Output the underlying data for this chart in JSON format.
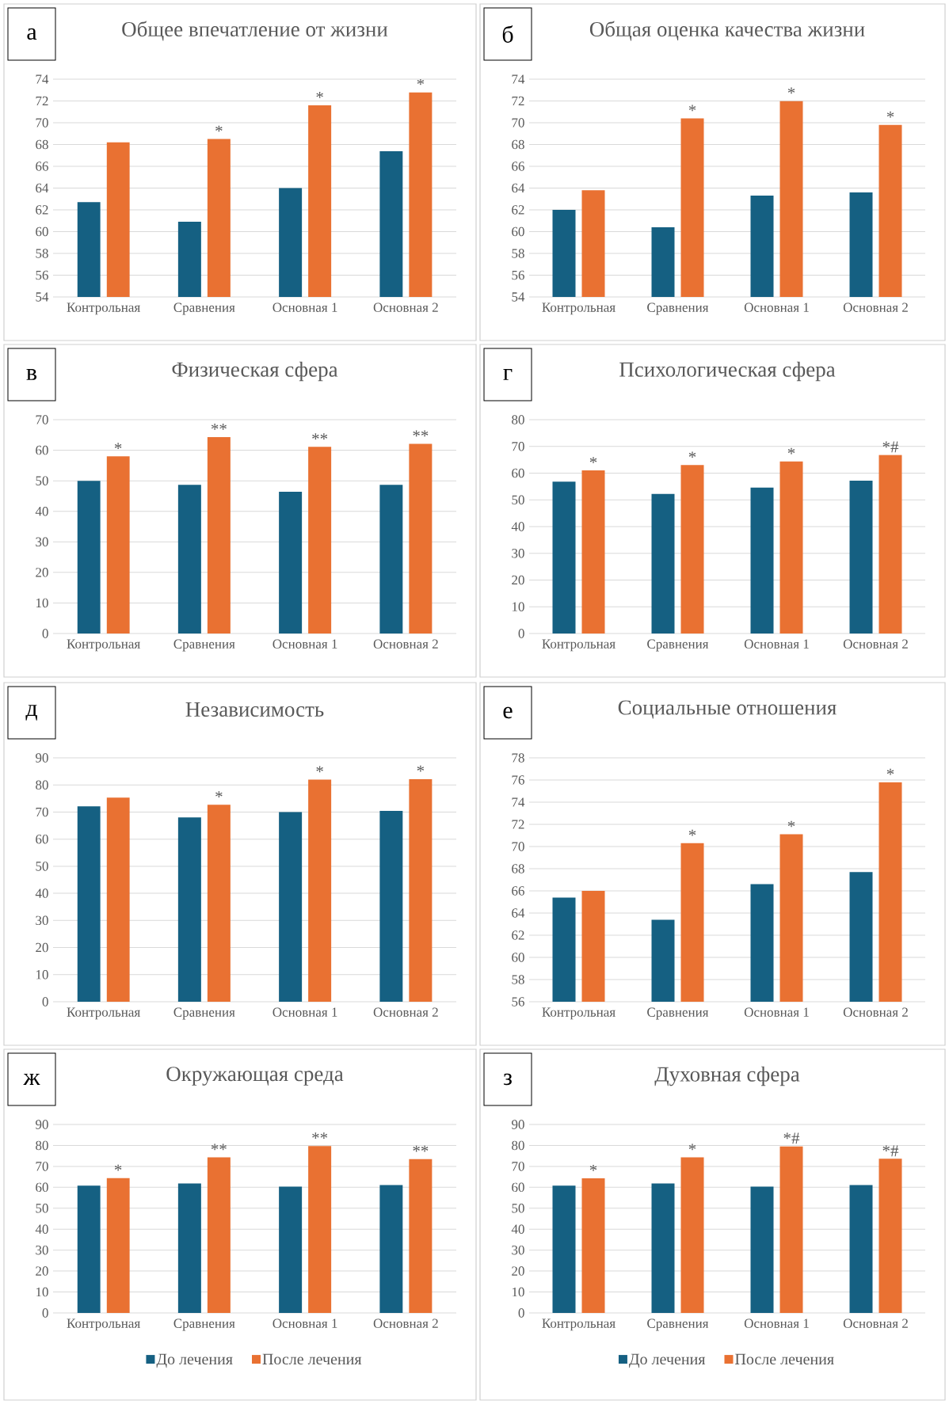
{
  "chart_data": [
    {
      "type": "bar",
      "title": "Общее впечатление от жизни",
      "categories": [
        "Контрольная",
        "Сравнения",
        "Основная 1",
        "Основная 2"
      ],
      "series": [
        {
          "color": "#156082",
          "values": [
            62.7,
            60.9,
            64.0,
            67.4
          ]
        },
        {
          "color": "#e97132",
          "values": [
            68.2,
            68.5,
            71.6,
            72.8
          ]
        }
      ],
      "ylim": [
        54,
        74
      ],
      "yticks": [
        54,
        56,
        58,
        60,
        62,
        64,
        66,
        68,
        70,
        72,
        74
      ],
      "grid": "y",
      "legend": false,
      "annotations": [
        "а",
        {
          "text": "*",
          "x": "Сравнения",
          "y": 68.5
        },
        {
          "text": "*",
          "x": "Основная 1",
          "y": 71.6
        },
        {
          "text": "*",
          "x": "Основная 2",
          "y": 72.8
        }
      ]
    },
    {
      "type": "bar",
      "title": "Общая оценка качества жизни",
      "categories": [
        "Контрольная",
        "Сравнения",
        "Основная 1",
        "Основная 2"
      ],
      "series": [
        {
          "color": "#156082",
          "values": [
            62.0,
            60.4,
            63.3,
            63.6
          ]
        },
        {
          "color": "#e97132",
          "values": [
            63.8,
            70.4,
            72.0,
            69.8
          ]
        }
      ],
      "ylim": [
        54,
        74
      ],
      "yticks": [
        54,
        56,
        58,
        60,
        62,
        64,
        66,
        68,
        70,
        72,
        74
      ],
      "grid": "y",
      "legend": false,
      "annotations": [
        "б",
        {
          "text": "*",
          "x": "Сравнения",
          "y": 70.4
        },
        {
          "text": "*",
          "x": "Основная 1",
          "y": 72.0
        },
        {
          "text": "*",
          "x": "Основная 2",
          "y": 69.8
        }
      ]
    },
    {
      "type": "bar",
      "title": "Физическая сфера",
      "categories": [
        "Контрольная",
        "Сравнения",
        "Основная 1",
        "Основная 2"
      ],
      "series": [
        {
          "color": "#156082",
          "values": [
            50.0,
            48.7,
            46.4,
            48.7
          ]
        },
        {
          "color": "#e97132",
          "values": [
            58.0,
            64.3,
            61.1,
            62.1
          ]
        }
      ],
      "ylim": [
        0,
        70
      ],
      "yticks": [
        0,
        10,
        20,
        30,
        40,
        50,
        60,
        70
      ],
      "grid": "y",
      "legend": false,
      "annotations": [
        "в",
        {
          "text": "*",
          "x": "Контрольная",
          "y": 58.0
        },
        {
          "text": "**",
          "x": "Сравнения",
          "y": 64.3
        },
        {
          "text": "**",
          "x": "Основная 1",
          "y": 61.1
        },
        {
          "text": "**",
          "x": "Основная 2",
          "y": 62.1
        }
      ]
    },
    {
      "type": "bar",
      "title": "Психологическая сфера",
      "categories": [
        "Контрольная",
        "Сравнения",
        "Основная 1",
        "Основная 2"
      ],
      "series": [
        {
          "color": "#156082",
          "values": [
            56.8,
            52.2,
            54.6,
            57.2
          ]
        },
        {
          "color": "#e97132",
          "values": [
            61.0,
            63.0,
            64.4,
            66.8
          ]
        }
      ],
      "ylim": [
        0,
        80
      ],
      "yticks": [
        0,
        10,
        20,
        30,
        40,
        50,
        60,
        70,
        80
      ],
      "grid": "y",
      "legend": false,
      "annotations": [
        "г",
        {
          "text": "*",
          "x": "Контрольная",
          "y": 61.0
        },
        {
          "text": "*",
          "x": "Сравнения",
          "y": 63.0
        },
        {
          "text": "*",
          "x": "Основная 1",
          "y": 64.4
        },
        {
          "text": "*#",
          "x": "Основная 2",
          "y": 66.8
        }
      ]
    },
    {
      "type": "bar",
      "title": "Независимость",
      "categories": [
        "Контрольная",
        "Сравнения",
        "Основная 1",
        "Основная 2"
      ],
      "series": [
        {
          "color": "#156082",
          "values": [
            72.1,
            68.0,
            70.0,
            70.4
          ]
        },
        {
          "color": "#e97132",
          "values": [
            75.3,
            72.7,
            82.0,
            82.2
          ]
        }
      ],
      "ylim": [
        0,
        90
      ],
      "yticks": [
        0,
        10,
        20,
        30,
        40,
        50,
        60,
        70,
        80,
        90
      ],
      "grid": "y",
      "legend": false,
      "annotations": [
        "д",
        {
          "text": "*",
          "x": "Сравнения",
          "y": 72.7
        },
        {
          "text": "*",
          "x": "Основная 1",
          "y": 82.0
        },
        {
          "text": "*",
          "x": "Основная 2",
          "y": 82.2
        }
      ]
    },
    {
      "type": "bar",
      "title": "Социальные отношения",
      "categories": [
        "Контрольная",
        "Сравнения",
        "Основная 1",
        "Основная 2"
      ],
      "series": [
        {
          "color": "#156082",
          "values": [
            65.4,
            63.4,
            66.6,
            67.7
          ]
        },
        {
          "color": "#e97132",
          "values": [
            66.0,
            70.3,
            71.1,
            75.8
          ]
        }
      ],
      "ylim": [
        56,
        78
      ],
      "yticks": [
        56,
        58,
        60,
        62,
        64,
        66,
        68,
        70,
        72,
        74,
        76,
        78
      ],
      "grid": "y",
      "legend": false,
      "annotations": [
        "е",
        {
          "text": "*",
          "x": "Сравнения",
          "y": 70.3
        },
        {
          "text": "*",
          "x": "Основная 1",
          "y": 71.1
        },
        {
          "text": "*",
          "x": "Основная 2",
          "y": 75.8
        }
      ]
    },
    {
      "type": "bar",
      "title": "Окружающая среда",
      "categories": [
        "Контрольная",
        "Сравнения",
        "Основная 1",
        "Основная 2"
      ],
      "series": [
        {
          "name": "До лечения",
          "color": "#156082",
          "values": [
            60.8,
            61.8,
            60.3,
            61.1
          ]
        },
        {
          "name": "После лечения",
          "color": "#e97132",
          "values": [
            64.4,
            74.3,
            79.7,
            73.5
          ]
        }
      ],
      "ylim": [
        0,
        90
      ],
      "yticks": [
        0,
        10,
        20,
        30,
        40,
        50,
        60,
        70,
        80,
        90
      ],
      "grid": "y",
      "legend": "bottom",
      "annotations": [
        "ж",
        {
          "text": "*",
          "x": "Контрольная",
          "y": 64.4
        },
        {
          "text": "**",
          "x": "Сравнения",
          "y": 74.3
        },
        {
          "text": "**",
          "x": "Основная 1",
          "y": 79.7
        },
        {
          "text": "**",
          "x": "Основная 2",
          "y": 73.5
        }
      ]
    },
    {
      "type": "bar",
      "title": "Духовная сфера",
      "categories": [
        "Контрольная",
        "Сравнения",
        "Основная 1",
        "Основная 2"
      ],
      "series": [
        {
          "name": "До лечения",
          "color": "#156082",
          "values": [
            60.8,
            61.8,
            60.3,
            61.1
          ]
        },
        {
          "name": "После лечения",
          "color": "#e97132",
          "values": [
            64.3,
            74.3,
            79.6,
            73.6
          ]
        }
      ],
      "ylim": [
        0,
        90
      ],
      "yticks": [
        0,
        10,
        20,
        30,
        40,
        50,
        60,
        70,
        80,
        90
      ],
      "grid": "y",
      "legend": "bottom",
      "annotations": [
        "з",
        {
          "text": "*",
          "x": "Контрольная",
          "y": 64.3
        },
        {
          "text": "*",
          "x": "Сравнения",
          "y": 74.3
        },
        {
          "text": "*#",
          "x": "Основная 1",
          "y": 79.6
        },
        {
          "text": "*#",
          "x": "Основная 2",
          "y": 73.6
        }
      ]
    }
  ]
}
